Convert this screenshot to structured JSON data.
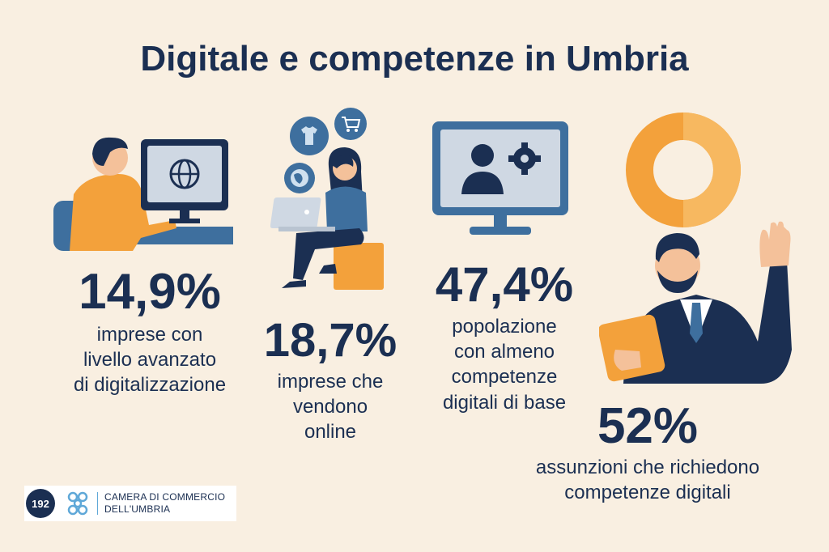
{
  "title": "Digitale e competenze in Umbria",
  "stats": [
    {
      "value": "14,9%",
      "lines": [
        "imprese con",
        "livello avanzato",
        "di digitalizzazione"
      ]
    },
    {
      "value": "18,7%",
      "lines": [
        "imprese che",
        "vendono",
        "online"
      ]
    },
    {
      "value": "47,4%",
      "lines": [
        "popolazione",
        "con almeno",
        "competenze",
        "digitali di base"
      ]
    },
    {
      "value": "52%",
      "lines": [
        "assunzioni che richiedono",
        "competenze digitali"
      ]
    }
  ],
  "footer": {
    "badge": "192",
    "org_line1": "CAMERA DI COMMERCIO",
    "org_line2": "DELL'UMBRIA"
  },
  "icons": [
    "computer-user",
    "t-shirt",
    "shopping-cart",
    "globe",
    "laptop-woman",
    "monitor-user-gear",
    "donut-chart",
    "businessman-tablet"
  ],
  "colors": {
    "background": "#f9efe1",
    "text": "#1b2f52",
    "orange": "#f3a13b",
    "blue": "#3e6f9e"
  }
}
